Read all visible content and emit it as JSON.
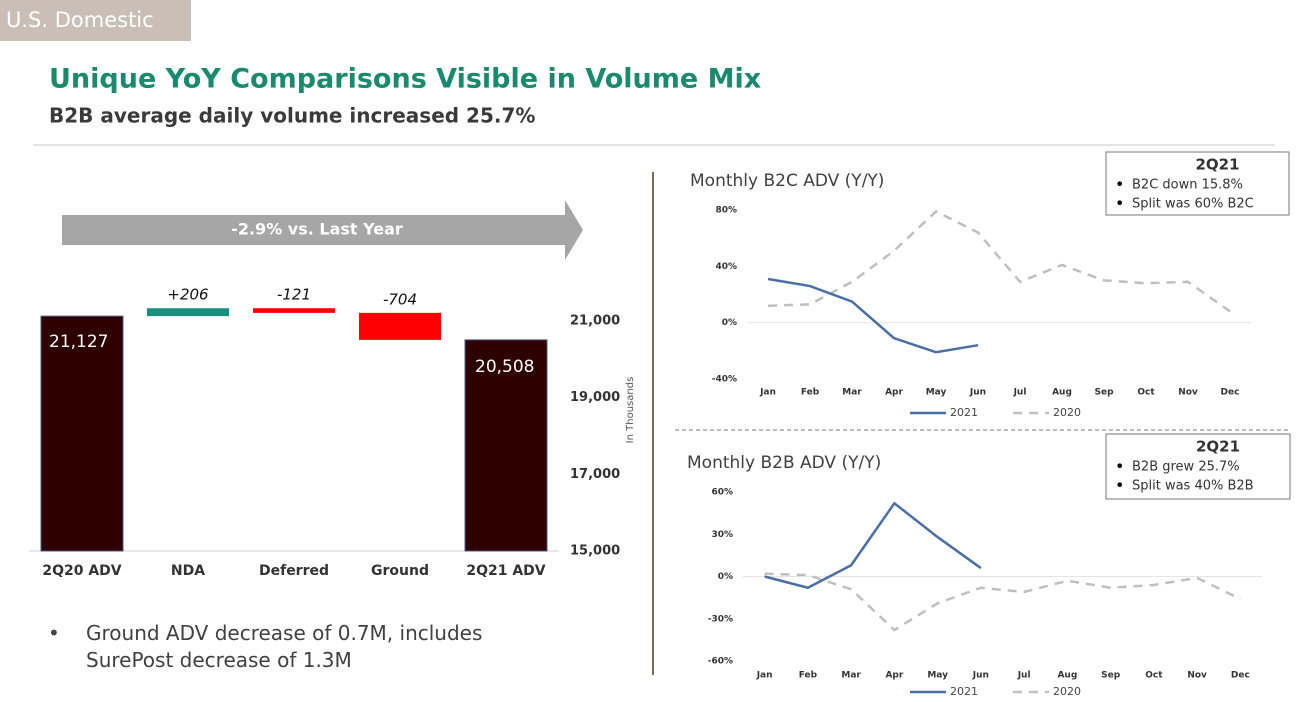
{
  "tag": "U.S. Domestic",
  "title": "Unique YoY Comparisons Visible in Volume Mix",
  "subtitle": "B2B average daily volume increased 25.7%",
  "banner": "-2.9% vs. Last Year",
  "bullet": "Ground ADV decrease of 0.7M, includes SurePost decrease of 1.3M",
  "chart_data": [
    {
      "type": "waterfall",
      "categories": [
        "2Q20 ADV",
        "NDA",
        "Deferred",
        "Ground",
        "2Q21 ADV"
      ],
      "values": [
        21127,
        206,
        -121,
        -704,
        20508
      ],
      "value_labels": [
        "21,127",
        "+206",
        "-121",
        "-704",
        "20,508"
      ],
      "colors": [
        "#2e0000",
        "#1a8f80",
        "#ff0000",
        "#ff0000",
        "#2e0000"
      ],
      "y_label": "In Thousands",
      "ylim": [
        15000,
        22500
      ],
      "yticks": [
        {
          "value": 15000,
          "label": "15,000"
        },
        {
          "value": 17000,
          "label": "17,000"
        },
        {
          "value": 19000,
          "label": "19,000"
        },
        {
          "value": 21000,
          "label": "21,000"
        }
      ]
    },
    {
      "type": "line",
      "title": "Monthly B2C ADV (Y/Y)",
      "categories": [
        "Jan",
        "Feb",
        "Mar",
        "Apr",
        "May",
        "Jun",
        "Jul",
        "Aug",
        "Sep",
        "Oct",
        "Nov",
        "Dec"
      ],
      "series": [
        {
          "name": "2021",
          "color": "#4a6fa5",
          "dashed": false,
          "values": [
            31,
            26,
            15,
            -11,
            -21,
            -16,
            null,
            null,
            null,
            null,
            null,
            null
          ]
        },
        {
          "name": "2020",
          "color": "#bfbfbf",
          "dashed": true,
          "values": [
            12,
            13,
            29,
            51,
            79,
            64,
            29,
            41,
            30,
            28,
            29,
            8
          ]
        }
      ],
      "ylim": [
        -40,
        80
      ],
      "yticks": [
        {
          "value": -40,
          "label": "-40%"
        },
        {
          "value": 0,
          "label": "0%"
        },
        {
          "value": 40,
          "label": "40%"
        },
        {
          "value": 80,
          "label": "80%"
        }
      ],
      "annotation": {
        "title": "2Q21",
        "items": [
          "B2C down 15.8%",
          "Split was 60% B2C"
        ]
      }
    },
    {
      "type": "line",
      "title": "Monthly B2B ADV (Y/Y)",
      "categories": [
        "Jan",
        "Feb",
        "Mar",
        "Apr",
        "May",
        "Jun",
        "Jul",
        "Aug",
        "Sep",
        "Oct",
        "Nov",
        "Dec"
      ],
      "series": [
        {
          "name": "2021",
          "color": "#4a6fa5",
          "dashed": false,
          "values": [
            0,
            -8,
            8,
            52,
            28,
            6,
            null,
            null,
            null,
            null,
            null,
            null
          ]
        },
        {
          "name": "2020",
          "color": "#bfbfbf",
          "dashed": true,
          "values": [
            2,
            1,
            -9,
            -38,
            -19,
            -8,
            -11,
            -3,
            -8,
            -6,
            -1,
            -16
          ]
        }
      ],
      "ylim": [
        -60,
        60
      ],
      "yticks": [
        {
          "value": -60,
          "label": "-60%"
        },
        {
          "value": -30,
          "label": "-30%"
        },
        {
          "value": 0,
          "label": "0%"
        },
        {
          "value": 30,
          "label": "30%"
        },
        {
          "value": 60,
          "label": "60%"
        }
      ],
      "annotation": {
        "title": "2Q21",
        "items": [
          "B2B grew 25.7%",
          "Split was 40% B2B"
        ]
      }
    }
  ]
}
